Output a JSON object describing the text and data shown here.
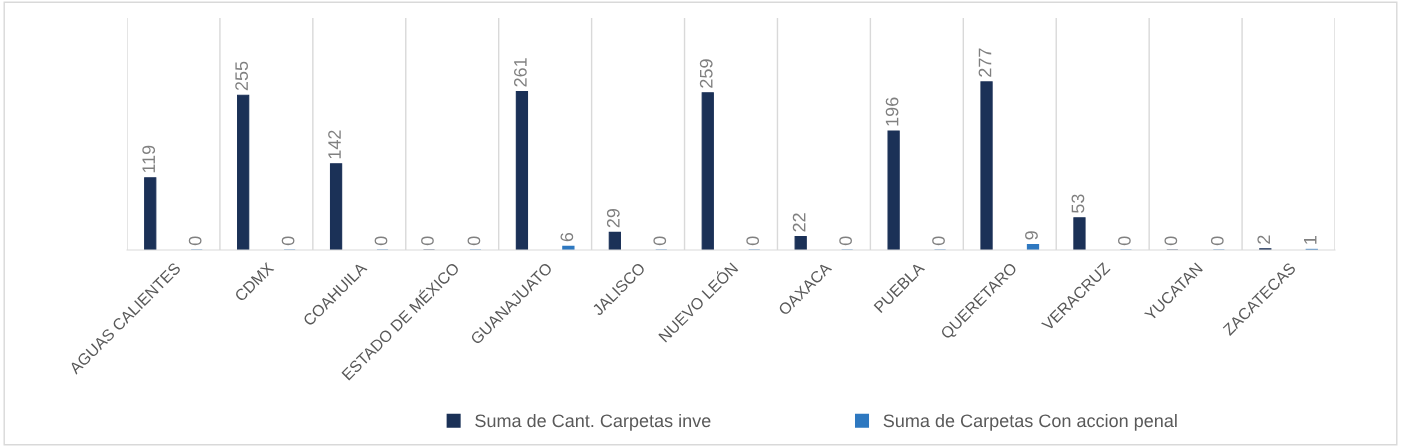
{
  "chart_data": {
    "type": "bar",
    "categories": [
      "AGUAS CALIENTES",
      "CDMX",
      "COAHUILA",
      "ESTADO DE MÉXICO",
      "GUANAJUATO",
      "JALISCO",
      "NUEVO LEÓN",
      "OAXACA",
      "PUEBLA",
      "QUERETARO",
      "VERACRUZ",
      "YUCATAN",
      "ZACATECAS"
    ],
    "series": [
      {
        "name": "Suma de Cant. Carpetas inve",
        "color": "#1b3157",
        "values": [
          119,
          255,
          142,
          0,
          261,
          29,
          259,
          22,
          196,
          277,
          53,
          0,
          2
        ]
      },
      {
        "name": "Suma de Carpetas Con accion penal",
        "color": "#2e78c0",
        "values": [
          0,
          0,
          0,
          0,
          6,
          0,
          0,
          0,
          0,
          9,
          0,
          0,
          1
        ]
      }
    ],
    "data_labels": true,
    "grid": "x",
    "legend": "bottom",
    "tick_labels": "x"
  }
}
